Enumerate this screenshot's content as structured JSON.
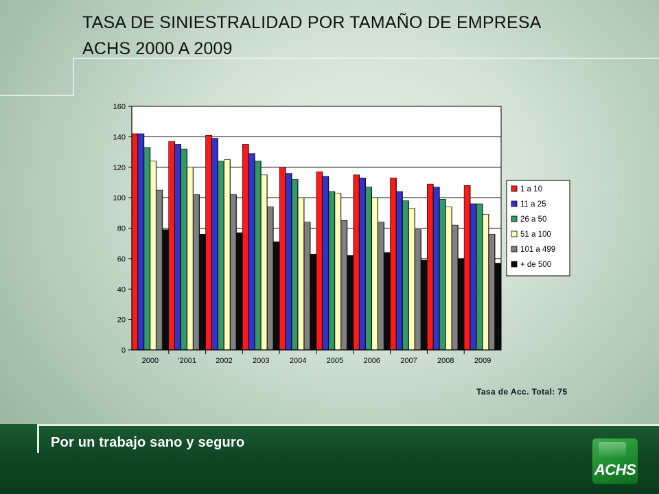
{
  "slide": {
    "title_line1": "TASA DE SINIESTRALIDAD POR TAMAÑO DE EMPRESA",
    "title_line2": "ACHS 2000 A 2009",
    "total_note": "Tasa de Acc. Total: 75",
    "footer_slogan": "Por un trabajo sano y seguro",
    "logo_text": "ACHS"
  },
  "chart_data": {
    "type": "bar",
    "categories": [
      "2000",
      "'2001",
      "2002",
      "2003",
      "2004",
      "2005",
      "2006",
      "2007",
      "2008",
      "2009"
    ],
    "ylim": [
      0,
      160
    ],
    "yticks": [
      0,
      20,
      40,
      60,
      80,
      100,
      120,
      140,
      160
    ],
    "grid": true,
    "legend": "right",
    "series": [
      {
        "name": "1 a 10",
        "color": "#ff1a1a",
        "values": [
          142,
          137,
          141,
          135,
          120,
          117,
          115,
          113,
          109,
          108
        ]
      },
      {
        "name": "11 a 25",
        "color": "#3333cc",
        "values": [
          142,
          135,
          139,
          129,
          116,
          114,
          113,
          104,
          107,
          96
        ]
      },
      {
        "name": "26 a 50",
        "color": "#339966",
        "values": [
          133,
          132,
          124,
          124,
          112,
          104,
          107,
          98,
          99,
          96
        ]
      },
      {
        "name": "51 a 100",
        "color": "#ffffbb",
        "values": [
          124,
          120,
          125,
          115,
          100,
          103,
          100,
          93,
          94,
          89
        ]
      },
      {
        "name": "101 a 499",
        "color": "#808080",
        "values": [
          105,
          102,
          102,
          94,
          84,
          85,
          84,
          79,
          82,
          76
        ]
      },
      {
        "name": "+ de 500",
        "color": "#0a0a0a",
        "values": [
          79,
          76,
          77,
          71,
          63,
          62,
          64,
          59,
          60,
          57
        ]
      }
    ]
  }
}
